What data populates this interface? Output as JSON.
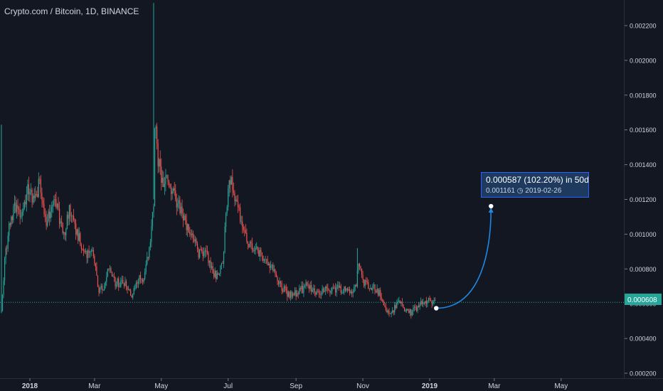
{
  "header": {
    "title": "Crypto.com / Bitcoin, 1D, BINANCE"
  },
  "colors": {
    "background": "#131722",
    "up": "#26a69a",
    "down": "#ef5350",
    "price_line": "#26a69a",
    "projection": "#1e88e5",
    "grid": "#2a2e39",
    "text": "#d1d4dc"
  },
  "projection_label": {
    "change_text": "0.000587 (102.20%) in 50d",
    "target_price": "0.001161",
    "target_date": "2019-02-26",
    "clock_icon": "clock-icon"
  },
  "last_price_label": "0.000608",
  "chart_data": {
    "type": "candlestick",
    "title": "Crypto.com / Bitcoin, 1D, BINANCE",
    "x_ticks": [
      "2018",
      "Mar",
      "May",
      "Jul",
      "Sep",
      "Nov",
      "2019",
      "Mar",
      "May"
    ],
    "y_ticks": [
      "0.000200",
      "0.000400",
      "0.000600",
      "0.000800",
      "0.001000",
      "0.001200",
      "0.001400",
      "0.001600",
      "0.001800",
      "0.002000",
      "0.002200"
    ],
    "ylim": [
      0.00017,
      0.00233
    ],
    "grid": false,
    "last_price": 0.000608,
    "price_anchors": [
      [
        "2017-12-06",
        0.00055
      ],
      [
        "2017-12-09",
        0.00085
      ],
      [
        "2017-12-13",
        0.00105
      ],
      [
        "2017-12-18",
        0.00115
      ],
      [
        "2017-12-24",
        0.00112
      ],
      [
        "2017-12-30",
        0.00125
      ],
      [
        "2018-01-05",
        0.00118
      ],
      [
        "2018-01-10",
        0.0013
      ],
      [
        "2018-01-16",
        0.00105
      ],
      [
        "2018-01-22",
        0.0012
      ],
      [
        "2018-01-26",
        0.00115
      ],
      [
        "2018-02-01",
        0.00098
      ],
      [
        "2018-02-06",
        0.00115
      ],
      [
        "2018-02-12",
        0.00103
      ],
      [
        "2018-02-20",
        0.00088
      ],
      [
        "2018-02-28",
        0.00088
      ],
      [
        "2018-03-05",
        0.00068
      ],
      [
        "2018-03-10",
        0.0007
      ],
      [
        "2018-03-14",
        0.0008
      ],
      [
        "2018-03-20",
        0.00072
      ],
      [
        "2018-03-28",
        0.00072
      ],
      [
        "2018-04-04",
        0.00063
      ],
      [
        "2018-04-10",
        0.00075
      ],
      [
        "2018-04-14",
        0.00072
      ],
      [
        "2018-04-20",
        0.0009
      ],
      [
        "2018-04-24",
        0.0012
      ],
      [
        "2018-04-25",
        0.00165
      ],
      [
        "2018-04-28",
        0.00143
      ],
      [
        "2018-05-02",
        0.00128
      ],
      [
        "2018-05-06",
        0.0013
      ],
      [
        "2018-05-10",
        0.00125
      ],
      [
        "2018-05-16",
        0.00118
      ],
      [
        "2018-05-22",
        0.00107
      ],
      [
        "2018-05-28",
        0.00102
      ],
      [
        "2018-06-04",
        0.00088
      ],
      [
        "2018-06-10",
        0.00092
      ],
      [
        "2018-06-14",
        0.00082
      ],
      [
        "2018-06-20",
        0.00076
      ],
      [
        "2018-06-26",
        0.00082
      ],
      [
        "2018-06-29",
        0.00112
      ],
      [
        "2018-07-02",
        0.00135
      ],
      [
        "2018-07-06",
        0.00125
      ],
      [
        "2018-07-12",
        0.0011
      ],
      [
        "2018-07-18",
        0.00095
      ],
      [
        "2018-07-24",
        0.00092
      ],
      [
        "2018-07-30",
        0.00088
      ],
      [
        "2018-08-06",
        0.00085
      ],
      [
        "2018-08-12",
        0.00078
      ],
      [
        "2018-08-18",
        0.0007
      ],
      [
        "2018-08-26",
        0.00065
      ],
      [
        "2018-09-02",
        0.00066
      ],
      [
        "2018-09-10",
        0.0007
      ],
      [
        "2018-09-20",
        0.00067
      ],
      [
        "2018-09-30",
        0.00068
      ],
      [
        "2018-10-10",
        0.00069
      ],
      [
        "2018-10-22",
        0.00067
      ],
      [
        "2018-10-26",
        0.00072
      ],
      [
        "2018-10-28",
        0.00082
      ],
      [
        "2018-11-02",
        0.00072
      ],
      [
        "2018-11-10",
        0.0007
      ],
      [
        "2018-11-16",
        0.00066
      ],
      [
        "2018-11-22",
        0.00056
      ],
      [
        "2018-11-28",
        0.00055
      ],
      [
        "2018-12-04",
        0.00062
      ],
      [
        "2018-12-10",
        0.00056
      ],
      [
        "2018-12-16",
        0.00055
      ],
      [
        "2018-12-22",
        0.00059
      ],
      [
        "2018-12-28",
        0.00061
      ],
      [
        "2019-01-04",
        0.00062
      ],
      [
        "2019-01-06",
        0.000608
      ]
    ],
    "spikes": [
      {
        "date": "2017-12-06",
        "value": 0.00163
      },
      {
        "date": "2018-04-24",
        "value": 0.00233
      },
      {
        "date": "2018-10-27",
        "value": 0.00092
      }
    ],
    "projection": {
      "start_date": "2019-01-07",
      "start_value": 0.000574,
      "end_date": "2019-02-26",
      "end_value": 0.001161
    }
  }
}
